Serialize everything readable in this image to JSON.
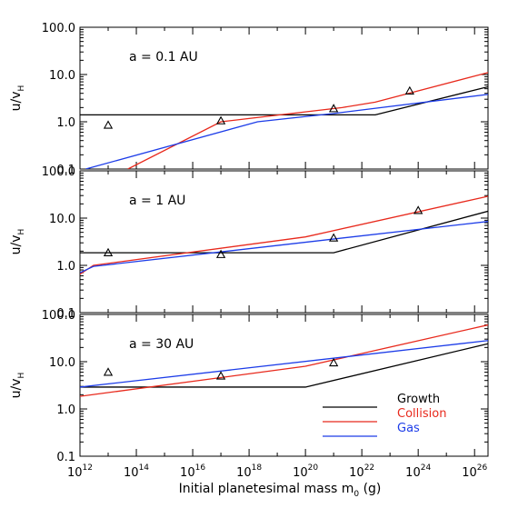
{
  "figure": {
    "xlabel": "Initial planetesimal mass m",
    "xlabel_sub": "0",
    "xlabel_unit": " (g)",
    "ylabel_main": "u/v",
    "ylabel_sub": "H",
    "x_tick_labels": [
      {
        "base": "10",
        "exp": "12"
      },
      {
        "base": "10",
        "exp": "14"
      },
      {
        "base": "10",
        "exp": "16"
      },
      {
        "base": "10",
        "exp": "18"
      },
      {
        "base": "10",
        "exp": "20"
      },
      {
        "base": "10",
        "exp": "22"
      },
      {
        "base": "10",
        "exp": "24"
      },
      {
        "base": "10",
        "exp": "26"
      }
    ],
    "y_tick_labels": [
      "0.1",
      "1.0",
      "10.0",
      "100.0"
    ],
    "legend": [
      {
        "label": "Growth",
        "color": "#000000"
      },
      {
        "label": "Collision",
        "color": "#e8291c"
      },
      {
        "label": "Gas",
        "color": "#1c3ce8"
      }
    ]
  },
  "chart_data": [
    {
      "type": "line",
      "title": "a = 0.1 AU",
      "xscale": "log",
      "yscale": "log",
      "xlim": [
        1000000000000.0,
        3e+26
      ],
      "ylim": [
        0.1,
        100
      ],
      "series": [
        {
          "name": "Growth",
          "color": "#000000",
          "points": [
            [
              1000000000000.0,
              1.4
            ],
            [
              3e+22,
              1.4
            ],
            [
              3e+26,
              5.5
            ]
          ]
        },
        {
          "name": "Collision",
          "color": "#e8291c",
          "points": [
            [
              50000000000000.0,
              0.1
            ],
            [
              1e+17,
              1.0
            ],
            [
              2e+21,
              2.0
            ],
            [
              3e+22,
              2.6
            ],
            [
              3e+26,
              11.0
            ]
          ]
        },
        {
          "name": "Gas",
          "color": "#1c3ce8",
          "points": [
            [
              1600000000000.0,
              0.1
            ],
            [
              2e+18,
              1.0
            ],
            [
              1e+21,
              1.5
            ],
            [
              3e+26,
              3.8
            ]
          ]
        }
      ],
      "markers": [
        [
          10000000000000.0,
          0.85
        ],
        [
          1e+17,
          1.05
        ],
        [
          1e+21,
          1.9
        ],
        [
          5e+23,
          4.5
        ]
      ]
    },
    {
      "type": "line",
      "title": "a = 1 AU",
      "xscale": "log",
      "yscale": "log",
      "xlim": [
        1000000000000.0,
        3e+26
      ],
      "ylim": [
        0.1,
        100
      ],
      "series": [
        {
          "name": "Growth",
          "color": "#000000",
          "points": [
            [
              1000000000000.0,
              1.85
            ],
            [
              1e+21,
              1.85
            ],
            [
              3e+26,
              14.0
            ]
          ]
        },
        {
          "name": "Collision",
          "color": "#e8291c",
          "points": [
            [
              1000000000000.0,
              0.65
            ],
            [
              3000000000000.0,
              1.0
            ],
            [
              1e+20,
              4.0
            ],
            [
              3e+26,
              29.0
            ]
          ]
        },
        {
          "name": "Gas",
          "color": "#1c3ce8",
          "points": [
            [
              1000000000000.0,
              0.7
            ],
            [
              3000000000000.0,
              0.95
            ],
            [
              3e+26,
              8.5
            ]
          ]
        }
      ],
      "markers": [
        [
          10000000000000.0,
          1.85
        ],
        [
          1e+17,
          1.7
        ],
        [
          1e+21,
          3.8
        ],
        [
          1e+24,
          14.5
        ]
      ]
    },
    {
      "type": "line",
      "title": "a = 30 AU",
      "xscale": "log",
      "yscale": "log",
      "xlim": [
        1000000000000.0,
        3e+26
      ],
      "ylim": [
        0.1,
        100
      ],
      "series": [
        {
          "name": "Growth",
          "color": "#000000",
          "points": [
            [
              1000000000000.0,
              2.9
            ],
            [
              1e+20,
              2.9
            ],
            [
              3e+26,
              24.0
            ]
          ]
        },
        {
          "name": "Collision",
          "color": "#e8291c",
          "points": [
            [
              1000000000000.0,
              1.85
            ],
            [
              1e+20,
              8.0
            ],
            [
              3e+26,
              60.0
            ]
          ]
        },
        {
          "name": "Gas",
          "color": "#1c3ce8",
          "points": [
            [
              1000000000000.0,
              2.9
            ],
            [
              3e+26,
              28.0
            ]
          ]
        }
      ],
      "markers": [
        [
          10000000000000.0,
          6.0
        ],
        [
          1e+17,
          5.0
        ],
        [
          1e+21,
          9.5
        ]
      ]
    }
  ]
}
